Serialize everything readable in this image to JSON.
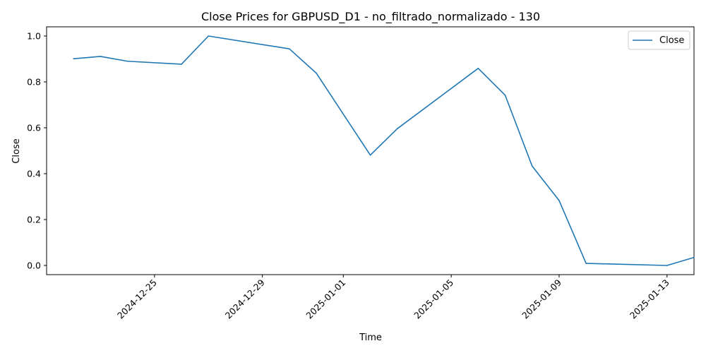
{
  "chart_data": {
    "type": "line",
    "title": "Close Prices for GBPUSD_D1 - no_filtrado_normalizado - 130",
    "xlabel": "Time",
    "ylabel": "Close",
    "xlim": [
      "2024-12-21",
      "2025-01-14"
    ],
    "ylim": [
      -0.04,
      1.04
    ],
    "x_ticks": [
      "2024-12-25",
      "2024-12-29",
      "2025-01-01",
      "2025-01-05",
      "2025-01-09",
      "2025-01-13"
    ],
    "y_ticks": [
      "0.0",
      "0.2",
      "0.4",
      "0.6",
      "0.8",
      "1.0"
    ],
    "grid": false,
    "legend_position": "top-right",
    "colors": {
      "series": "#1f77b4"
    },
    "series": [
      {
        "name": "Close",
        "x": [
          "2024-12-22",
          "2024-12-23",
          "2024-12-24",
          "2024-12-26",
          "2024-12-27",
          "2024-12-30",
          "2024-12-31",
          "2025-01-02",
          "2025-01-03",
          "2025-01-06",
          "2025-01-07",
          "2025-01-08",
          "2025-01-09",
          "2025-01-10",
          "2025-01-13",
          "2025-01-14"
        ],
        "values": [
          0.901,
          0.911,
          0.89,
          0.877,
          1.0,
          0.944,
          0.838,
          0.481,
          0.596,
          0.859,
          0.742,
          0.433,
          0.283,
          0.009,
          0.0,
          0.035
        ]
      }
    ]
  }
}
